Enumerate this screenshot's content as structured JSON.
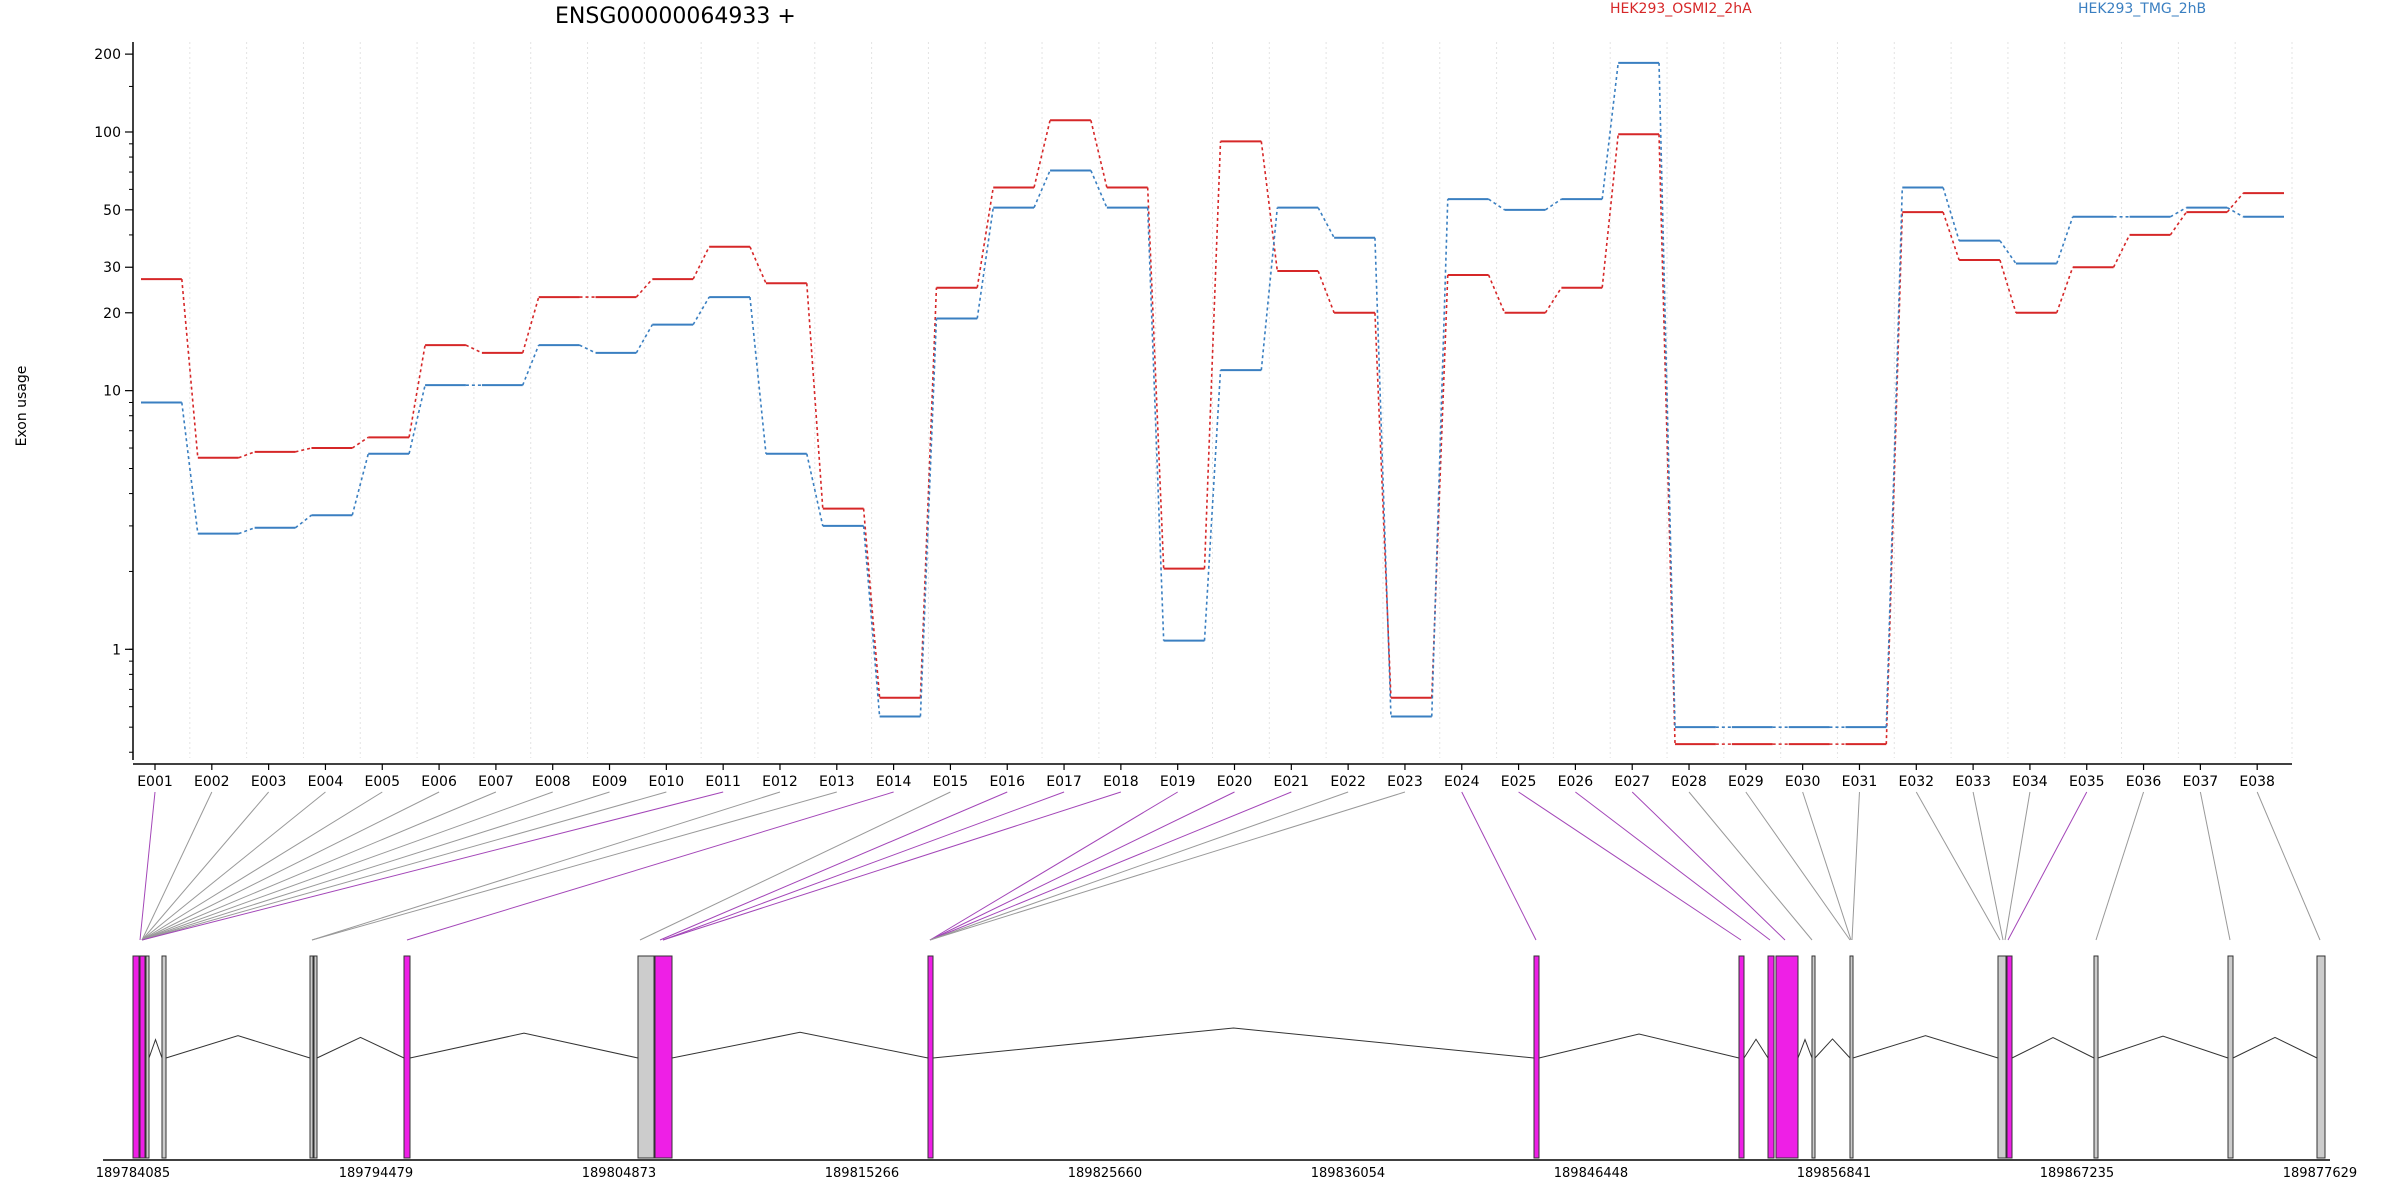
{
  "chart_data": {
    "type": "line",
    "title": "ENSG00000064933 +",
    "ylabel": "Exon usage",
    "y_scale": "log",
    "ylim": [
      0.38,
      215
    ],
    "y_ticks": [
      {
        "value": 1,
        "label": "1"
      },
      {
        "value": 10,
        "label": "10"
      },
      {
        "value": 20,
        "label": "20"
      },
      {
        "value": 30,
        "label": "30"
      },
      {
        "value": 50,
        "label": "50"
      },
      {
        "value": 100,
        "label": "100"
      },
      {
        "value": 200,
        "label": "200"
      }
    ],
    "grid": "vertical dotted lines at exon bins",
    "categories": [
      "E001",
      "E002",
      "E003",
      "E004",
      "E005",
      "E006",
      "E007",
      "E008",
      "E009",
      "E010",
      "E011",
      "E012",
      "E013",
      "E014",
      "E015",
      "E016",
      "E017",
      "E018",
      "E019",
      "E020",
      "E021",
      "E022",
      "E023",
      "E024",
      "E025",
      "E026",
      "E027",
      "E028",
      "E029",
      "E030",
      "E031",
      "E032",
      "E033",
      "E034",
      "E035",
      "E036",
      "E037",
      "E038"
    ],
    "series": [
      {
        "name": "HEK293_OSMI2_2hA",
        "color": "#d62728",
        "values": [
          27,
          5.5,
          5.8,
          6.0,
          6.6,
          15,
          14,
          23,
          23,
          27,
          36,
          26,
          3.5,
          0.65,
          25,
          61,
          111,
          61,
          2.05,
          92,
          29,
          20,
          0.65,
          28,
          20,
          25,
          98,
          0.43,
          0.43,
          0.43,
          0.43,
          49,
          32,
          20,
          30,
          40,
          49,
          58
        ]
      },
      {
        "name": "HEK293_TMG_2hB",
        "color": "#3a7fc1",
        "values": [
          9,
          2.8,
          2.95,
          3.3,
          5.7,
          10.5,
          10.5,
          15,
          14,
          18,
          23,
          5.7,
          3.0,
          0.55,
          19,
          51,
          71,
          51,
          1.08,
          12,
          51,
          39,
          0.55,
          55,
          50,
          55,
          185,
          0.5,
          0.5,
          0.5,
          0.5,
          61,
          38,
          31,
          47,
          47,
          51,
          47
        ]
      }
    ],
    "legend": [
      "HEK293_OSMI2_2hA",
      "HEK293_TMG_2hB"
    ],
    "legend_placement": "top",
    "gene_model": {
      "coordinate_labels": [
        "189784085",
        "189794479",
        "189804873",
        "189815266",
        "189825660",
        "189836054",
        "189846448",
        "189856841",
        "189867235",
        "189877629"
      ],
      "exon_count": 38,
      "highlight_color": "#ee1fe6",
      "plain_exon_color": "#cccccc",
      "connector_highlight_color": "#a346b8",
      "connector_plain_color": "#999999"
    }
  }
}
